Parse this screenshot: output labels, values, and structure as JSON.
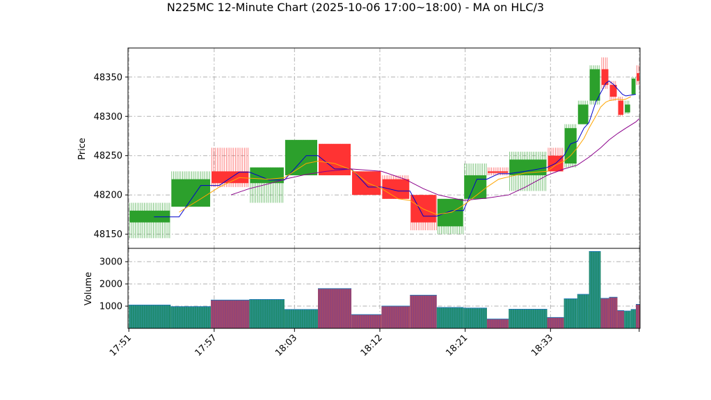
{
  "chart_data": {
    "type": "candlestick",
    "title": "N225MC 12-Minute Chart (2025-10-06 17:00~18:00) - MA on HLC/3",
    "price_panel": {
      "ylabel": "Price",
      "ylim": [
        48132,
        48387
      ],
      "yticks": [
        48150,
        48200,
        48250,
        48300,
        48350
      ]
    },
    "volume_panel": {
      "ylabel": "Volume",
      "ylim": [
        0,
        3600
      ],
      "yticks": [
        1000,
        2000,
        3000
      ]
    },
    "xlim": [
      17.45,
      48.05
    ],
    "xticks": [
      {
        "x": 17.5,
        "label": "17:51"
      },
      {
        "x": 22.6,
        "label": "17:57"
      },
      {
        "x": 27.4,
        "label": "18:03"
      },
      {
        "x": 32.5,
        "label": "18:12"
      },
      {
        "x": 37.6,
        "label": "18:21"
      },
      {
        "x": 42.7,
        "label": "18:33"
      },
      {
        "x": 48.0,
        "label": ""
      }
    ],
    "grid": true,
    "colors": {
      "up": "#2ca02c",
      "down": "#ff3333",
      "volume_up": "#1f8a70",
      "volume_down": "#a0486b",
      "ma_fast": "#0000cc",
      "ma_mid": "#ffa500",
      "ma_slow": "#8b008b"
    },
    "candles": [
      {
        "x0": 17.5,
        "x1": 20.0,
        "open": 48165,
        "high": 48190,
        "low": 48145,
        "close": 48180,
        "volume": 1050
      },
      {
        "x0": 20.0,
        "x1": 22.4,
        "open": 48185,
        "high": 48230,
        "low": 48185,
        "close": 48220,
        "volume": 980
      },
      {
        "x0": 22.4,
        "x1": 24.7,
        "open": 48230,
        "high": 48260,
        "low": 48210,
        "close": 48215,
        "volume": 1270
      },
      {
        "x0": 24.7,
        "x1": 26.8,
        "open": 48215,
        "high": 48235,
        "low": 48190,
        "close": 48235,
        "volume": 1300
      },
      {
        "x0": 26.8,
        "x1": 28.8,
        "open": 48225,
        "high": 48270,
        "low": 48225,
        "close": 48270,
        "volume": 850
      },
      {
        "x0": 28.8,
        "x1": 30.8,
        "open": 48265,
        "high": 48265,
        "low": 48225,
        "close": 48225,
        "volume": 1790
      },
      {
        "x0": 30.8,
        "x1": 32.6,
        "open": 48230,
        "high": 48230,
        "low": 48200,
        "close": 48200,
        "volume": 620
      },
      {
        "x0": 32.6,
        "x1": 34.3,
        "open": 48220,
        "high": 48225,
        "low": 48195,
        "close": 48195,
        "volume": 1000
      },
      {
        "x0": 34.3,
        "x1": 35.9,
        "open": 48200,
        "high": 48200,
        "low": 48155,
        "close": 48165,
        "volume": 1490
      },
      {
        "x0": 35.9,
        "x1": 37.5,
        "open": 48160,
        "high": 48195,
        "low": 48150,
        "close": 48195,
        "volume": 940
      },
      {
        "x0": 37.5,
        "x1": 38.9,
        "open": 48195,
        "high": 48240,
        "low": 48195,
        "close": 48225,
        "volume": 910
      },
      {
        "x0": 38.9,
        "x1": 40.2,
        "open": 48230,
        "high": 48235,
        "low": 48225,
        "close": 48228,
        "volume": 420
      },
      {
        "x0": 40.2,
        "x1": 42.5,
        "open": 48225,
        "high": 48255,
        "low": 48205,
        "close": 48245,
        "volume": 860
      },
      {
        "x0": 42.5,
        "x1": 43.5,
        "open": 48250,
        "high": 48260,
        "low": 48230,
        "close": 48230,
        "volume": 490
      },
      {
        "x0": 43.5,
        "x1": 44.3,
        "open": 48240,
        "high": 48290,
        "low": 48235,
        "close": 48285,
        "volume": 1330
      },
      {
        "x0": 44.3,
        "x1": 45.0,
        "open": 48290,
        "high": 48320,
        "low": 48290,
        "close": 48315,
        "volume": 1530
      },
      {
        "x0": 45.0,
        "x1": 45.7,
        "open": 48320,
        "high": 48365,
        "low": 48315,
        "close": 48360,
        "volume": 3460
      },
      {
        "x0": 45.7,
        "x1": 46.2,
        "open": 48360,
        "high": 48375,
        "low": 48335,
        "close": 48340,
        "volume": 1350
      },
      {
        "x0": 46.2,
        "x1": 46.7,
        "open": 48340,
        "high": 48345,
        "low": 48320,
        "close": 48325,
        "volume": 1400
      },
      {
        "x0": 46.7,
        "x1": 47.1,
        "open": 48320,
        "high": 48325,
        "low": 48300,
        "close": 48302,
        "volume": 800
      },
      {
        "x0": 47.1,
        "x1": 47.5,
        "open": 48305,
        "high": 48320,
        "low": 48303,
        "close": 48315,
        "volume": 780
      },
      {
        "x0": 47.5,
        "x1": 47.8,
        "open": 48328,
        "high": 48350,
        "low": 48328,
        "close": 48348,
        "volume": 850
      },
      {
        "x0": 47.8,
        "x1": 48.05,
        "open": 48355,
        "high": 48365,
        "low": 48340,
        "close": 48345,
        "volume": 1080
      }
    ],
    "moving_averages": [
      {
        "key": "ma_fast",
        "points": [
          [
            19.0,
            48172
          ],
          [
            20.5,
            48172
          ],
          [
            21.8,
            48212
          ],
          [
            22.9,
            48212
          ],
          [
            24.1,
            48229
          ],
          [
            24.7,
            48229
          ],
          [
            25.9,
            48219
          ],
          [
            26.8,
            48219
          ],
          [
            28.1,
            48250
          ],
          [
            28.8,
            48250
          ],
          [
            29.8,
            48233
          ],
          [
            30.8,
            48233
          ],
          [
            31.8,
            48210
          ],
          [
            32.6,
            48210
          ],
          [
            33.6,
            48205
          ],
          [
            34.3,
            48205
          ],
          [
            35.1,
            48173
          ],
          [
            35.9,
            48173
          ],
          [
            36.8,
            48180
          ],
          [
            37.5,
            48180
          ],
          [
            38.3,
            48220
          ],
          [
            38.9,
            48220
          ],
          [
            39.6,
            48227
          ],
          [
            40.2,
            48227
          ],
          [
            41.2,
            48230
          ],
          [
            42.5,
            48235
          ],
          [
            43.0,
            48240
          ],
          [
            43.5,
            48250
          ],
          [
            43.9,
            48265
          ],
          [
            44.3,
            48268
          ],
          [
            44.7,
            48285
          ],
          [
            45.0,
            48292
          ],
          [
            45.4,
            48318
          ],
          [
            45.7,
            48330
          ],
          [
            46.0,
            48342
          ],
          [
            46.2,
            48345
          ],
          [
            46.5,
            48340
          ],
          [
            46.7,
            48335
          ],
          [
            47.0,
            48328
          ],
          [
            47.2,
            48326
          ],
          [
            47.5,
            48327
          ],
          [
            47.8,
            48328
          ]
        ]
      },
      {
        "key": "ma_mid",
        "points": [
          [
            20.5,
            48178
          ],
          [
            21.8,
            48195
          ],
          [
            22.9,
            48210
          ],
          [
            24.1,
            48222
          ],
          [
            25.9,
            48220
          ],
          [
            26.8,
            48222
          ],
          [
            28.1,
            48240
          ],
          [
            28.8,
            48243
          ],
          [
            29.8,
            48240
          ],
          [
            30.8,
            48232
          ],
          [
            31.8,
            48215
          ],
          [
            32.6,
            48208
          ],
          [
            33.6,
            48195
          ],
          [
            34.3,
            48193
          ],
          [
            35.1,
            48182
          ],
          [
            35.9,
            48175
          ],
          [
            36.8,
            48178
          ],
          [
            37.5,
            48187
          ],
          [
            38.3,
            48200
          ],
          [
            38.9,
            48210
          ],
          [
            39.6,
            48220
          ],
          [
            40.2,
            48223
          ],
          [
            41.2,
            48228
          ],
          [
            42.5,
            48230
          ],
          [
            43.0,
            48238
          ],
          [
            43.5,
            48243
          ],
          [
            43.9,
            48250
          ],
          [
            44.3,
            48260
          ],
          [
            44.7,
            48272
          ],
          [
            45.0,
            48285
          ],
          [
            45.4,
            48300
          ],
          [
            45.7,
            48312
          ],
          [
            46.0,
            48318
          ],
          [
            46.2,
            48320
          ],
          [
            46.5,
            48321
          ],
          [
            46.7,
            48322
          ],
          [
            47.0,
            48321
          ],
          [
            47.2,
            48322
          ],
          [
            47.5,
            48325
          ]
        ]
      },
      {
        "key": "ma_slow",
        "points": [
          [
            23.6,
            48200
          ],
          [
            24.7,
            48208
          ],
          [
            26.0,
            48215
          ],
          [
            27.0,
            48221
          ],
          [
            28.1,
            48226
          ],
          [
            29.3,
            48230
          ],
          [
            30.8,
            48233
          ],
          [
            32.6,
            48230
          ],
          [
            34.0,
            48220
          ],
          [
            35.1,
            48208
          ],
          [
            36.0,
            48200
          ],
          [
            37.5,
            48193
          ],
          [
            38.9,
            48196
          ],
          [
            40.2,
            48200
          ],
          [
            41.2,
            48210
          ],
          [
            42.5,
            48225
          ],
          [
            43.5,
            48233
          ],
          [
            44.3,
            48238
          ],
          [
            45.0,
            48248
          ],
          [
            45.7,
            48260
          ],
          [
            46.2,
            48270
          ],
          [
            46.7,
            48278
          ],
          [
            47.2,
            48285
          ],
          [
            47.8,
            48293
          ],
          [
            48.0,
            48297
          ]
        ]
      }
    ]
  }
}
